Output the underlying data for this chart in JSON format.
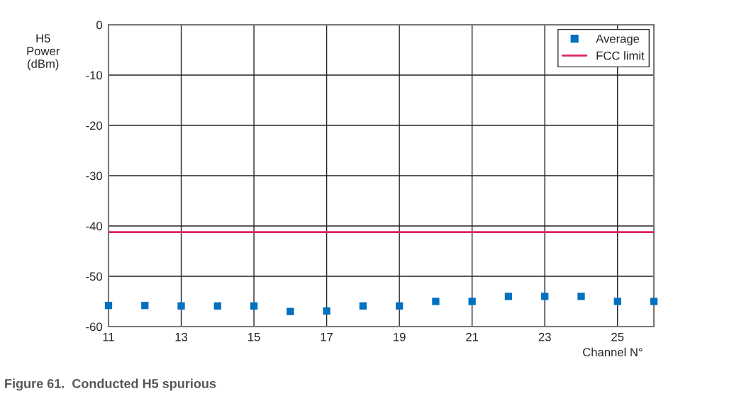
{
  "chart_data": {
    "type": "scatter",
    "title": "Figure 61.  Conducted H5 spurious",
    "xlabel": "Channel N°",
    "ylabel": "H5\nPower\n(dBm)",
    "x": [
      11,
      12,
      13,
      14,
      15,
      16,
      17,
      18,
      19,
      20,
      21,
      22,
      23,
      24,
      25,
      26
    ],
    "series": [
      {
        "name": "Average",
        "color": "#0070c0",
        "values": [
          -55.8,
          -55.8,
          -55.9,
          -55.9,
          -55.9,
          -57.0,
          -56.9,
          -55.9,
          -55.9,
          -55.0,
          -55.0,
          -54.0,
          -54.0,
          -54.0,
          -55.0,
          -55.0
        ]
      }
    ],
    "ref_lines": [
      {
        "axis": "y",
        "value": -41.2,
        "label": "FCC limit",
        "color": "#e0245e",
        "line_style": "solid"
      }
    ],
    "xlim": [
      11,
      26
    ],
    "xticks": [
      11,
      13,
      15,
      17,
      19,
      21,
      23,
      25
    ],
    "ylim": [
      -60,
      0
    ],
    "yticks": [
      -60,
      -50,
      -40,
      -30,
      -20,
      -10,
      0
    ],
    "grid": true,
    "legend": "top right",
    "marker": "square"
  }
}
